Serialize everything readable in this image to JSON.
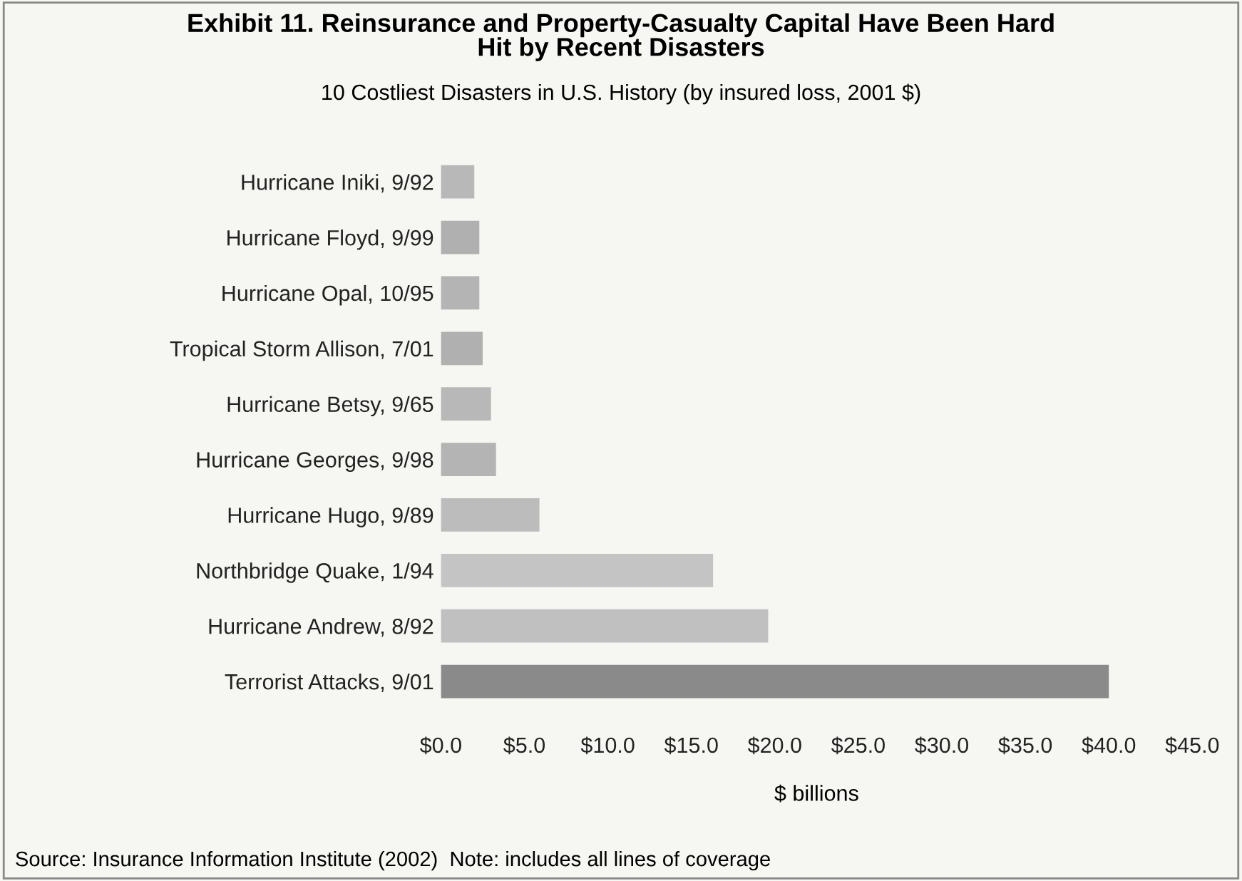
{
  "chart_data": {
    "type": "bar",
    "orientation": "horizontal",
    "title": "Exhibit 11. Reinsurance and Property-Casualty Capital Have Been Hard\nHit by Recent Disasters",
    "subtitle": "10 Costliest Disasters in U.S. History (by insured loss, 2001 $)",
    "xlabel": "$ billions",
    "categories": [
      "Hurricane Iniki, 9/92",
      "Hurricane Floyd, 9/99",
      "Hurricane Opal, 10/95",
      "Tropical Storm Allison, 7/01",
      "Hurricane Betsy, 9/65",
      "Hurricane Georges, 9/98",
      "Hurricane Hugo, 9/89",
      "Northbridge Quake, 1/94",
      "Hurricane Andrew, 8/92",
      "Terrorist Attacks, 9/01"
    ],
    "values": [
      2.0,
      2.3,
      2.3,
      2.5,
      3.0,
      3.3,
      5.9,
      16.3,
      19.6,
      40.0
    ],
    "colors": [
      "#b8b8b8",
      "#b0b0b0",
      "#b4b4b4",
      "#b0b0b0",
      "#b8b8b8",
      "#b4b4b4",
      "#bcbcbc",
      "#c4c4c4",
      "#c0c0c0",
      "#8a8a8a"
    ],
    "xlim": [
      0,
      45
    ],
    "xticks": [
      {
        "value": 0,
        "label": "$0.0"
      },
      {
        "value": 5,
        "label": "$5.0"
      },
      {
        "value": 10,
        "label": "$10.0"
      },
      {
        "value": 15,
        "label": "$15.0"
      },
      {
        "value": 20,
        "label": "$20.0"
      },
      {
        "value": 25,
        "label": "$25.0"
      },
      {
        "value": 30,
        "label": "$30.0"
      },
      {
        "value": 35,
        "label": "$35.0"
      },
      {
        "value": 40,
        "label": "$40.0"
      },
      {
        "value": 45,
        "label": "$45.0"
      }
    ],
    "grid": false,
    "annotations": [
      "Source: Insurance Information Institute (2002)  Note: includes all lines of coverage"
    ]
  }
}
